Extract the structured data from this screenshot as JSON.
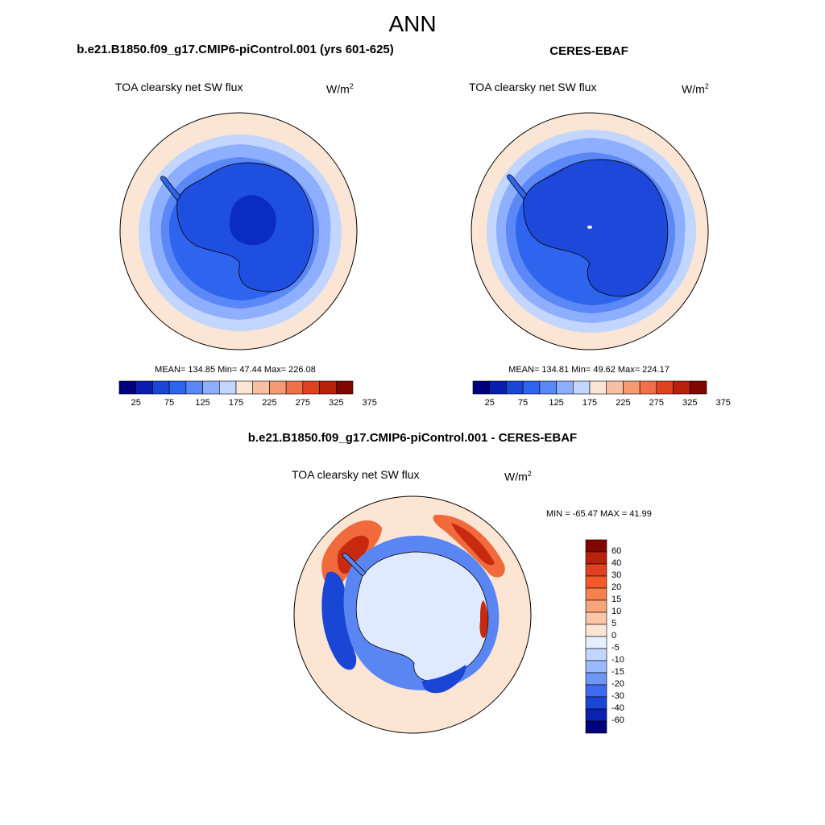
{
  "figure": {
    "title": "ANN"
  },
  "panels": [
    {
      "title": "b.e21.B1850.f09_g17.CMIP6-piControl.001 (yrs 601-625)",
      "variable": "TOA clearsky net SW flux",
      "units_base": "W/m",
      "units_exp": "2",
      "stats": "MEAN= 134.85  Min=  47.44  Max= 226.08"
    },
    {
      "title": "CERES-EBAF",
      "variable": "TOA clearsky net SW flux",
      "units_base": "W/m",
      "units_exp": "2",
      "stats": "MEAN= 134.81  Min=  49.62  Max= 224.17"
    },
    {
      "title": "b.e21.B1850.f09_g17.CMIP6-piControl.001 - CERES-EBAF",
      "variable": "TOA clearsky net SW flux",
      "units_base": "W/m",
      "units_exp": "2",
      "stats": "MIN = -65.47 MAX =  41.99"
    }
  ],
  "colorbar_abs": {
    "tick_labels": [
      "25",
      "75",
      "125",
      "175",
      "225",
      "275",
      "325",
      "375"
    ],
    "colors": [
      "#00007f",
      "#0a1fb0",
      "#1a46d6",
      "#2f64ee",
      "#5a88f6",
      "#8eafff",
      "#c2d6ff",
      "#fbe6d6",
      "#f8c0a2",
      "#f69a74",
      "#f0704a",
      "#df4220",
      "#b8220d",
      "#820600"
    ]
  },
  "colorbar_diff": {
    "tick_labels": [
      "60",
      "40",
      "30",
      "20",
      "15",
      "10",
      "5",
      "0",
      "-5",
      "-10",
      "-15",
      "-20",
      "-30",
      "-40",
      "-60"
    ],
    "colors": [
      "#820600",
      "#b8220d",
      "#df4220",
      "#f25a2a",
      "#f7804f",
      "#f9a47a",
      "#fbc6a6",
      "#fde5d4",
      "#e6efff",
      "#c2d6ff",
      "#9ab9ff",
      "#6e96f8",
      "#3d6af0",
      "#1a46d6",
      "#0a22b0",
      "#00007f"
    ]
  },
  "map_colors": {
    "ocean_outer": "#fbe6d6",
    "ring_1": "#c2d6ff",
    "ring_2": "#8eafff",
    "ring_3": "#5a88f6",
    "ring_4": "#2f64ee",
    "ice": "#1f4fe0",
    "ice_center": "#0a2cc0",
    "diff_bg": "#fde5d4",
    "diff_pos": "#f06a3c",
    "diff_pos_strong": "#c82a10",
    "diff_neg": "#5a86f4",
    "diff_neg_strong": "#1a46d6",
    "diff_ice": "#dfe9ff"
  }
}
